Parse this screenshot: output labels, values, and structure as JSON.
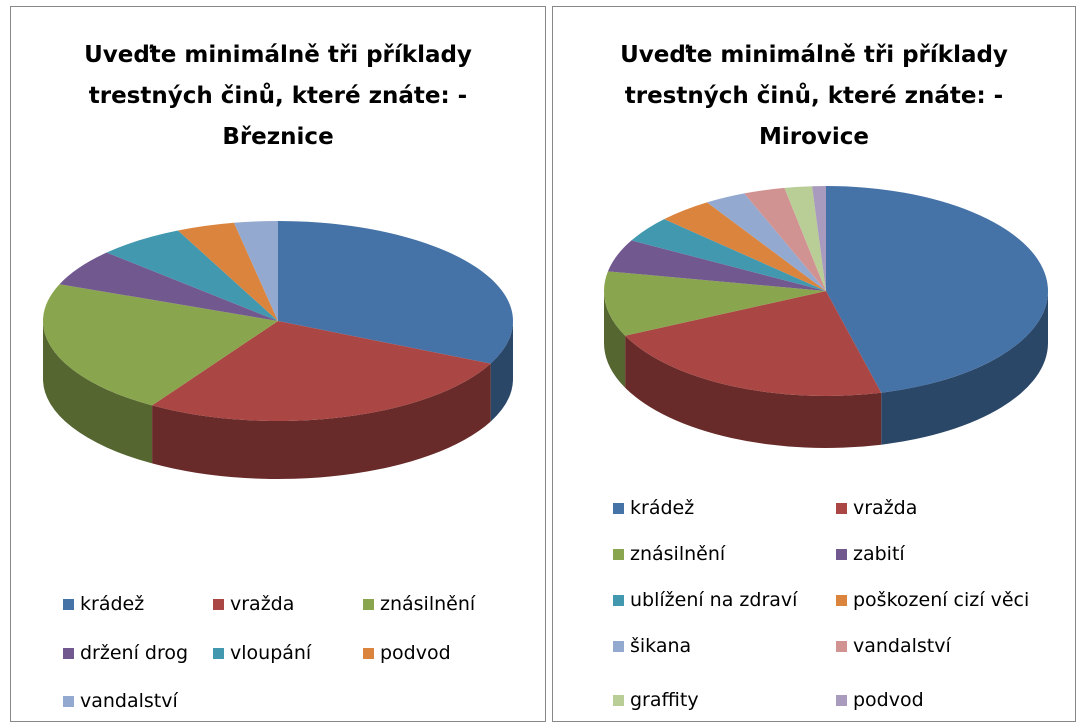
{
  "chart_data": [
    {
      "type": "pie",
      "title": "Uveďte minimálně tři příklady trestných činů, které znáte: - Březnice",
      "categories": [
        "krádež",
        "vražda",
        "znásilnění",
        "držení drog",
        "vloupání",
        "podvod",
        "vandalství"
      ],
      "values": [
        32,
        27,
        22,
        6,
        6,
        4,
        3
      ],
      "colors": [
        "#4572A7",
        "#AA4643",
        "#89A54E",
        "#71588F",
        "#4198AF",
        "#DB843D",
        "#93A9CF"
      ],
      "legend": "bottom"
    },
    {
      "type": "pie",
      "title": "Uveďte minimálně tři příklady trestných činů, které znáte: - Mirovice",
      "categories": [
        "krádež",
        "vražda",
        "znásilnění",
        "zabití",
        "ublížení na zdraví",
        "poškození cizí věci",
        "šikana",
        "vandalství",
        "graffity",
        "podvod"
      ],
      "values": [
        46,
        22,
        10,
        5,
        4,
        4,
        3,
        3,
        2,
        1
      ],
      "colors": [
        "#4572A7",
        "#AA4643",
        "#89A54E",
        "#71588F",
        "#4198AF",
        "#DB843D",
        "#93A9CF",
        "#D19392",
        "#B9CD96",
        "#A99BBD"
      ],
      "legend": "bottom"
    }
  ]
}
